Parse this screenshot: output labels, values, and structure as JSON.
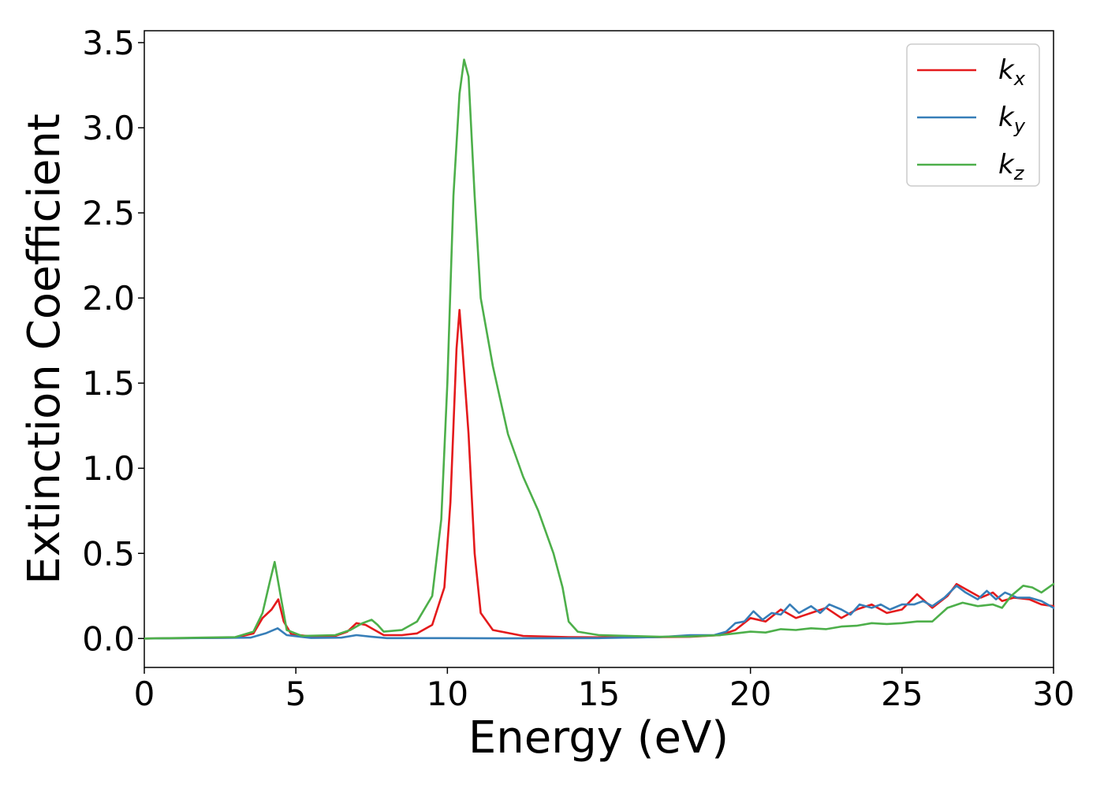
{
  "chart_data": {
    "type": "line",
    "title": "",
    "xlabel": "Energy (eV)",
    "ylabel": "Extinction Coefficient",
    "xlim": [
      0,
      30
    ],
    "ylim": [
      -0.17,
      3.57
    ],
    "xticks": [
      0,
      5,
      10,
      15,
      20,
      25,
      30
    ],
    "xtick_labels": [
      "0",
      "5",
      "10",
      "15",
      "20",
      "25",
      "30"
    ],
    "yticks": [
      0.0,
      0.5,
      1.0,
      1.5,
      2.0,
      2.5,
      3.0,
      3.5
    ],
    "ytick_labels": [
      "0.0",
      "0.5",
      "1.0",
      "1.5",
      "2.0",
      "2.5",
      "3.0",
      "3.5"
    ],
    "grid": false,
    "legend_position": "top-right",
    "series": [
      {
        "name": "k_x",
        "label_main": "k",
        "label_sub": "x",
        "color": "#e41a1c",
        "points": [
          [
            0,
            0
          ],
          [
            3.0,
            0.005
          ],
          [
            3.6,
            0.03
          ],
          [
            3.9,
            0.12
          ],
          [
            4.2,
            0.17
          ],
          [
            4.42,
            0.23
          ],
          [
            4.6,
            0.1
          ],
          [
            4.85,
            0.025
          ],
          [
            5.5,
            0.012
          ],
          [
            6.3,
            0.015
          ],
          [
            6.7,
            0.04
          ],
          [
            7.0,
            0.09
          ],
          [
            7.3,
            0.08
          ],
          [
            7.6,
            0.05
          ],
          [
            7.9,
            0.02
          ],
          [
            8.5,
            0.02
          ],
          [
            9.0,
            0.03
          ],
          [
            9.5,
            0.08
          ],
          [
            9.9,
            0.3
          ],
          [
            10.1,
            0.8
          ],
          [
            10.3,
            1.7
          ],
          [
            10.4,
            1.93
          ],
          [
            10.5,
            1.7
          ],
          [
            10.7,
            1.2
          ],
          [
            10.9,
            0.5
          ],
          [
            11.1,
            0.15
          ],
          [
            11.5,
            0.05
          ],
          [
            12.5,
            0.015
          ],
          [
            14,
            0.008
          ],
          [
            16,
            0.006
          ],
          [
            18,
            0.01
          ],
          [
            19,
            0.02
          ],
          [
            19.5,
            0.05
          ],
          [
            20,
            0.12
          ],
          [
            20.5,
            0.1
          ],
          [
            21,
            0.17
          ],
          [
            21.5,
            0.12
          ],
          [
            22,
            0.15
          ],
          [
            22.5,
            0.18
          ],
          [
            23,
            0.12
          ],
          [
            23.5,
            0.17
          ],
          [
            24,
            0.2
          ],
          [
            24.5,
            0.15
          ],
          [
            25,
            0.17
          ],
          [
            25.5,
            0.26
          ],
          [
            26,
            0.18
          ],
          [
            26.5,
            0.25
          ],
          [
            26.8,
            0.32
          ],
          [
            27.2,
            0.28
          ],
          [
            27.6,
            0.24
          ],
          [
            28,
            0.27
          ],
          [
            28.3,
            0.22
          ],
          [
            28.7,
            0.24
          ],
          [
            29.2,
            0.23
          ],
          [
            29.6,
            0.2
          ],
          [
            30,
            0.19
          ]
        ]
      },
      {
        "name": "k_y",
        "label_main": "k",
        "label_sub": "y",
        "color": "#377eb8",
        "points": [
          [
            0,
            0
          ],
          [
            3.5,
            0.005
          ],
          [
            4.0,
            0.03
          ],
          [
            4.4,
            0.06
          ],
          [
            4.7,
            0.02
          ],
          [
            5.5,
            0.003
          ],
          [
            6.5,
            0.005
          ],
          [
            7.0,
            0.02
          ],
          [
            7.5,
            0.01
          ],
          [
            8,
            0.002
          ],
          [
            10,
            0.002
          ],
          [
            12,
            0.001
          ],
          [
            15,
            0.002
          ],
          [
            17,
            0.008
          ],
          [
            18,
            0.02
          ],
          [
            18.8,
            0.02
          ],
          [
            19.2,
            0.04
          ],
          [
            19.5,
            0.09
          ],
          [
            19.8,
            0.1
          ],
          [
            20.1,
            0.16
          ],
          [
            20.4,
            0.11
          ],
          [
            20.7,
            0.15
          ],
          [
            21.0,
            0.14
          ],
          [
            21.3,
            0.2
          ],
          [
            21.6,
            0.15
          ],
          [
            22.0,
            0.19
          ],
          [
            22.3,
            0.15
          ],
          [
            22.6,
            0.2
          ],
          [
            23.0,
            0.17
          ],
          [
            23.3,
            0.14
          ],
          [
            23.6,
            0.2
          ],
          [
            24.0,
            0.18
          ],
          [
            24.3,
            0.2
          ],
          [
            24.6,
            0.17
          ],
          [
            25.0,
            0.2
          ],
          [
            25.4,
            0.2
          ],
          [
            25.7,
            0.22
          ],
          [
            26.0,
            0.19
          ],
          [
            26.4,
            0.24
          ],
          [
            26.8,
            0.31
          ],
          [
            27.1,
            0.27
          ],
          [
            27.5,
            0.23
          ],
          [
            27.8,
            0.28
          ],
          [
            28.1,
            0.23
          ],
          [
            28.4,
            0.27
          ],
          [
            28.8,
            0.24
          ],
          [
            29.2,
            0.24
          ],
          [
            29.6,
            0.22
          ],
          [
            30,
            0.18
          ]
        ]
      },
      {
        "name": "k_z",
        "label_main": "k",
        "label_sub": "z",
        "color": "#4daf4a",
        "points": [
          [
            0,
            0
          ],
          [
            3.0,
            0.008
          ],
          [
            3.6,
            0.04
          ],
          [
            3.9,
            0.15
          ],
          [
            4.15,
            0.34
          ],
          [
            4.3,
            0.45
          ],
          [
            4.5,
            0.25
          ],
          [
            4.7,
            0.05
          ],
          [
            5.2,
            0.015
          ],
          [
            6.3,
            0.02
          ],
          [
            6.8,
            0.05
          ],
          [
            7.2,
            0.09
          ],
          [
            7.5,
            0.11
          ],
          [
            7.7,
            0.08
          ],
          [
            7.9,
            0.04
          ],
          [
            8.5,
            0.05
          ],
          [
            9.0,
            0.1
          ],
          [
            9.5,
            0.25
          ],
          [
            9.8,
            0.7
          ],
          [
            10.0,
            1.5
          ],
          [
            10.2,
            2.6
          ],
          [
            10.4,
            3.2
          ],
          [
            10.55,
            3.4
          ],
          [
            10.7,
            3.3
          ],
          [
            10.9,
            2.6
          ],
          [
            11.1,
            2.0
          ],
          [
            11.5,
            1.6
          ],
          [
            12.0,
            1.2
          ],
          [
            12.5,
            0.95
          ],
          [
            13.0,
            0.75
          ],
          [
            13.5,
            0.5
          ],
          [
            13.8,
            0.3
          ],
          [
            14.0,
            0.1
          ],
          [
            14.3,
            0.04
          ],
          [
            15,
            0.02
          ],
          [
            16,
            0.015
          ],
          [
            17,
            0.01
          ],
          [
            18,
            0.012
          ],
          [
            19,
            0.02
          ],
          [
            19.5,
            0.03
          ],
          [
            20.0,
            0.04
          ],
          [
            20.5,
            0.035
          ],
          [
            21.0,
            0.055
          ],
          [
            21.5,
            0.05
          ],
          [
            22.0,
            0.06
          ],
          [
            22.5,
            0.055
          ],
          [
            23.0,
            0.07
          ],
          [
            23.5,
            0.075
          ],
          [
            24.0,
            0.09
          ],
          [
            24.5,
            0.085
          ],
          [
            25.0,
            0.09
          ],
          [
            25.5,
            0.1
          ],
          [
            26.0,
            0.1
          ],
          [
            26.5,
            0.18
          ],
          [
            27.0,
            0.21
          ],
          [
            27.5,
            0.19
          ],
          [
            28.0,
            0.2
          ],
          [
            28.3,
            0.18
          ],
          [
            28.6,
            0.25
          ],
          [
            29.0,
            0.31
          ],
          [
            29.3,
            0.3
          ],
          [
            29.6,
            0.27
          ],
          [
            30,
            0.32
          ]
        ]
      }
    ]
  }
}
